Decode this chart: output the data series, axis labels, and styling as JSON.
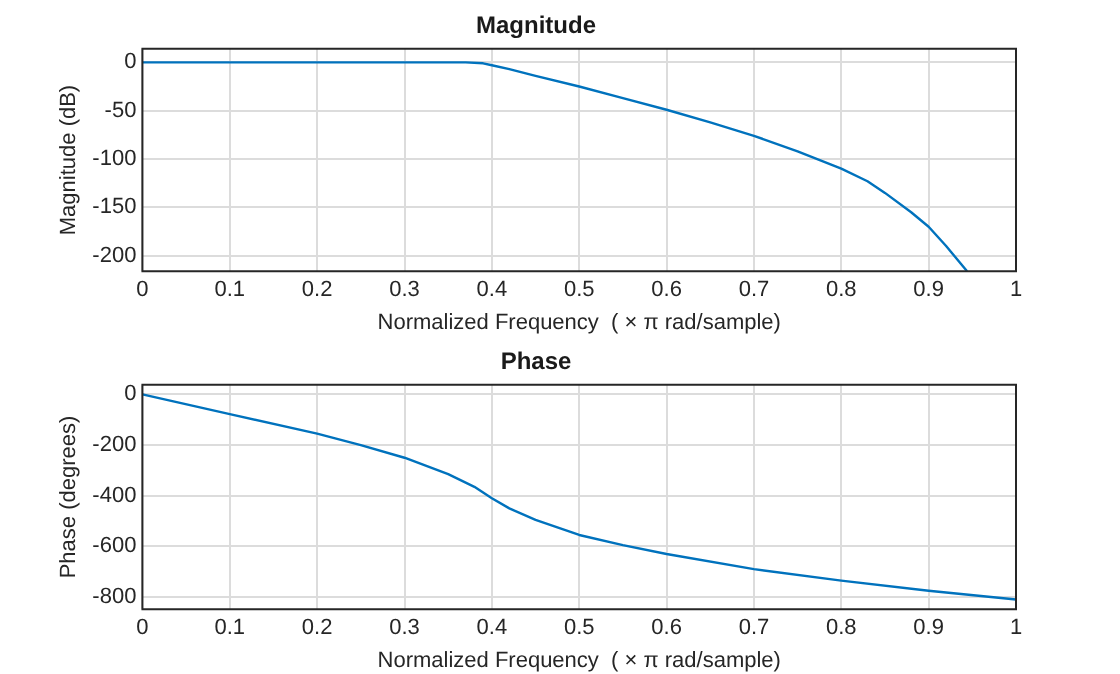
{
  "chart_data": [
    {
      "type": "line",
      "title": "Magnitude",
      "xlabel": "Normalized Frequency  ( × π rad/sample)",
      "ylabel": "Magnitude (dB)",
      "xlim": [
        0,
        1
      ],
      "xticks": [
        0,
        0.1,
        0.2,
        0.3,
        0.4,
        0.5,
        0.6,
        0.7,
        0.8,
        0.9,
        1
      ],
      "ylim": [
        -216,
        14
      ],
      "yticks": [
        -200,
        -150,
        -100,
        -50,
        0
      ],
      "grid": true,
      "marker": "none",
      "line_style": "solid",
      "series": [
        {
          "color": "#0072bd",
          "x": [
            0,
            0.1,
            0.2,
            0.3,
            0.35,
            0.37,
            0.39,
            0.4,
            0.42,
            0.45,
            0.5,
            0.55,
            0.6,
            0.65,
            0.7,
            0.75,
            0.8,
            0.83,
            0.85,
            0.88,
            0.9,
            0.92,
            0.944
          ],
          "values": [
            0,
            0,
            0,
            0,
            0,
            0,
            -1,
            -3,
            -7,
            -14,
            -25,
            -37,
            -49,
            -62,
            -76,
            -92,
            -110,
            -123,
            -135,
            -155,
            -170,
            -190,
            -216
          ]
        }
      ]
    },
    {
      "type": "line",
      "title": "Phase",
      "xlabel": "Normalized Frequency  ( × π rad/sample)",
      "ylabel": "Phase (degrees)",
      "xlim": [
        0,
        1
      ],
      "xticks": [
        0,
        0.1,
        0.2,
        0.3,
        0.4,
        0.5,
        0.6,
        0.7,
        0.8,
        0.9,
        1
      ],
      "ylim": [
        -848,
        38
      ],
      "yticks": [
        -800,
        -600,
        -400,
        -200,
        0
      ],
      "grid": true,
      "marker": "none",
      "line_style": "solid",
      "series": [
        {
          "color": "#0072bd",
          "x": [
            0,
            0.1,
            0.2,
            0.25,
            0.3,
            0.35,
            0.38,
            0.4,
            0.42,
            0.45,
            0.5,
            0.55,
            0.6,
            0.7,
            0.8,
            0.9,
            1
          ],
          "values": [
            0,
            -78,
            -155,
            -200,
            -250,
            -315,
            -365,
            -410,
            -450,
            -495,
            -555,
            -595,
            -630,
            -690,
            -735,
            -775,
            -810
          ]
        }
      ]
    }
  ]
}
